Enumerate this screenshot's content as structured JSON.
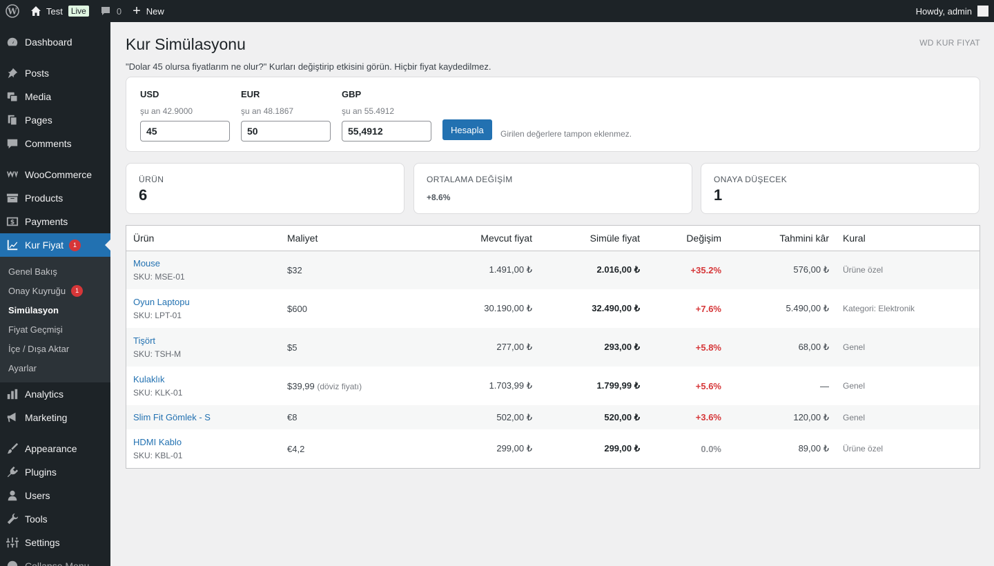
{
  "adminbar": {
    "site_name": "Test",
    "live_label": "Live",
    "comments_count": "0",
    "new_label": "New",
    "howdy": "Howdy, admin"
  },
  "sidebar": {
    "items": [
      {
        "label": "Dashboard",
        "icon": "dashboard-icon"
      },
      {
        "label": "Posts",
        "icon": "pin-icon"
      },
      {
        "label": "Media",
        "icon": "media-icon"
      },
      {
        "label": "Pages",
        "icon": "pages-icon"
      },
      {
        "label": "Comments",
        "icon": "comment-icon"
      },
      {
        "label": "WooCommerce",
        "icon": "woocommerce-icon"
      },
      {
        "label": "Products",
        "icon": "archive-icon"
      },
      {
        "label": "Payments",
        "icon": "payments-icon"
      },
      {
        "label": "Kur Fiyat",
        "icon": "chart-line-icon",
        "badge": "1"
      },
      {
        "label": "Analytics",
        "icon": "bar-chart-icon"
      },
      {
        "label": "Marketing",
        "icon": "megaphone-icon"
      },
      {
        "label": "Appearance",
        "icon": "brush-icon"
      },
      {
        "label": "Plugins",
        "icon": "plugin-icon"
      },
      {
        "label": "Users",
        "icon": "user-icon"
      },
      {
        "label": "Tools",
        "icon": "wrench-icon"
      },
      {
        "label": "Settings",
        "icon": "settings-icon"
      },
      {
        "label": "Collapse Menu",
        "icon": "collapse-icon"
      }
    ],
    "submenu": [
      {
        "label": "Genel Bakış"
      },
      {
        "label": "Onay Kuyruğu",
        "badge": "1"
      },
      {
        "label": "Simülasyon"
      },
      {
        "label": "Fiyat Geçmişi"
      },
      {
        "label": "İçe / Dışa Aktar"
      },
      {
        "label": "Ayarlar"
      }
    ]
  },
  "page": {
    "title": "Kur Simülasyonu",
    "brand": "WD KUR FIYAT",
    "description": "\"Dolar 45 olursa fiyatlarım ne olur?\" Kurları değiştirip etkisini görün. Hiçbir fiyat kaydedilmez."
  },
  "rates": [
    {
      "code": "USD",
      "current": "şu an 42.9000",
      "value": "45"
    },
    {
      "code": "EUR",
      "current": "şu an 48.1867",
      "value": "50"
    },
    {
      "code": "GBP",
      "current": "şu an 55.4912",
      "value": "55,4912"
    }
  ],
  "calculate_label": "Hesapla",
  "hint": "Girilen değerlere tampon eklenmez.",
  "stats": {
    "products": {
      "label": "ÜRÜN",
      "value": "6"
    },
    "avg_change": {
      "label": "ORTALAMA DEĞİŞİM",
      "value": "+8.6%"
    },
    "to_approval": {
      "label": "ONAYA DÜŞECEK",
      "value": "1"
    }
  },
  "table": {
    "headers": {
      "product": "Ürün",
      "cost": "Maliyet",
      "current_price": "Mevcut fiyat",
      "simulated_price": "Simüle fiyat",
      "change": "Değişim",
      "est_profit": "Tahmini kâr",
      "rule": "Kural"
    },
    "rows": [
      {
        "name": "Mouse",
        "sku": "SKU: MSE-01",
        "cost": "$32",
        "cost_note": "",
        "current": "1.491,00 ₺",
        "simulated": "2.016,00 ₺",
        "change": "+35.2%",
        "profit": "576,00 ₺",
        "rule": "Ürüne özel"
      },
      {
        "name": "Oyun Laptopu",
        "sku": "SKU: LPT-01",
        "cost": "$600",
        "cost_note": "",
        "current": "30.190,00 ₺",
        "simulated": "32.490,00 ₺",
        "change": "+7.6%",
        "profit": "5.490,00 ₺",
        "rule": "Kategori: Elektronik"
      },
      {
        "name": "Tişört",
        "sku": "SKU: TSH-M",
        "cost": "$5",
        "cost_note": "",
        "current": "277,00 ₺",
        "simulated": "293,00 ₺",
        "change": "+5.8%",
        "profit": "68,00 ₺",
        "rule": "Genel"
      },
      {
        "name": "Kulaklık",
        "sku": "SKU: KLK-01",
        "cost": "$39,99",
        "cost_note": "(döviz fiyatı)",
        "current": "1.703,99 ₺",
        "simulated": "1.799,99 ₺",
        "change": "+5.6%",
        "profit": "—",
        "rule": "Genel"
      },
      {
        "name": "Slim Fit Gömlek - S",
        "sku": "",
        "cost": "€8",
        "cost_note": "",
        "current": "502,00 ₺",
        "simulated": "520,00 ₺",
        "change": "+3.6%",
        "profit": "120,00 ₺",
        "rule": "Genel"
      },
      {
        "name": "HDMI Kablo",
        "sku": "SKU: KBL-01",
        "cost": "€4,2",
        "cost_note": "",
        "current": "299,00 ₺",
        "simulated": "299,00 ₺",
        "change": "0.0%",
        "profit": "89,00 ₺",
        "rule": "Ürüne özel"
      }
    ]
  },
  "colors": {
    "accent": "#2271b1",
    "positive_change": "#d63638",
    "sidebar_bg": "#1d2327"
  }
}
